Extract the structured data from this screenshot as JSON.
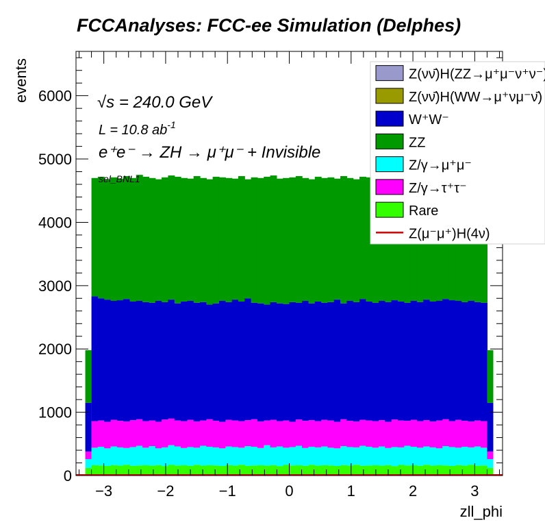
{
  "chart_data": {
    "type": "bar",
    "title": "FCCAnalyses: FCC-ee Simulation (Delphes)",
    "xlabel": "zll_phi",
    "ylabel": "events",
    "xlim": [
      -3.45,
      3.45
    ],
    "ylim": [
      0,
      6700
    ],
    "x_ticks": [
      -3,
      -2,
      -1,
      0,
      1,
      2,
      3
    ],
    "x_tick_labels": [
      "−3",
      "−2",
      "−1",
      "0",
      "1",
      "2",
      "3"
    ],
    "y_ticks": [
      0,
      1000,
      2000,
      3000,
      4000,
      5000,
      6000
    ],
    "y_tick_labels": [
      "0",
      "1000",
      "2000",
      "3000",
      "4000",
      "5000",
      "6000"
    ],
    "bin_range": [
      -3.2,
      3.2
    ],
    "annotations": {
      "energy": "√s = 240.0 GeV",
      "lumi": "L = 10.8 ab",
      "lumi_exp": "-1",
      "process": "e⁺e⁻ → ZH → μ⁺μ⁻ + Invisible",
      "selection": "sel_BNL1"
    },
    "legend": [
      {
        "label": "Z(νν̄)H(ZZ→μ⁺μ⁻ν⁺ν⁻)",
        "color": "#9999cc",
        "style": "fill"
      },
      {
        "label": "Z(νν̄)H(WW→μ⁺νμ⁻ν̄)",
        "color": "#999900",
        "style": "fill"
      },
      {
        "label": "W⁺W⁻",
        "color": "#0000cc",
        "style": "fill"
      },
      {
        "label": "ZZ",
        "color": "#009900",
        "style": "fill"
      },
      {
        "label": "Z/γ→μ⁺μ⁻",
        "color": "#00ffff",
        "style": "fill"
      },
      {
        "label": "Z/γ→τ⁺τ⁻",
        "color": "#ff00ff",
        "style": "fill"
      },
      {
        "label": "Rare",
        "color": "#33ff00",
        "style": "fill"
      },
      {
        "label": "Z(μ⁻μ⁺)H(4ν)",
        "color": "#cc0000",
        "style": "line"
      }
    ],
    "stack_order_bottom_to_top": [
      "Rare",
      "Z/γ→μ⁺μ⁻",
      "Z/γ→τ⁺τ⁻",
      "W⁺W⁻",
      "ZZ"
    ],
    "edge_bins": {
      "x": [
        -3.2,
        3.2
      ],
      "cumulative_totals": {
        "Rare": 120,
        "Z/γ→μ⁺μ⁻": 260,
        "Z/γ→τ⁺τ⁻": 380,
        "W⁺W⁻": 1150,
        "ZZ": 1980
      }
    },
    "central_cumulative_totals": {
      "Rare": [
        163,
        160,
        152,
        165,
        158,
        170,
        155,
        160,
        162,
        158,
        165,
        150,
        168,
        160,
        162,
        155,
        170,
        158,
        163,
        160,
        152,
        165,
        158,
        170,
        155,
        160,
        162,
        158,
        165,
        150,
        168,
        160,
        162,
        155,
        170,
        158,
        163,
        160,
        152,
        165,
        158,
        170,
        155,
        160,
        162,
        158,
        165,
        150,
        168,
        160,
        162,
        155,
        170,
        158,
        163,
        160,
        152,
        165,
        158,
        170,
        155,
        160
      ],
      "Z/γ→μ⁺μ⁻": [
        440,
        455,
        430,
        460,
        445,
        435,
        450,
        470,
        440,
        465,
        430,
        445,
        480,
        460,
        435,
        450,
        440,
        470,
        455,
        445,
        430,
        460,
        450,
        440,
        465,
        455,
        435,
        480,
        445,
        460,
        440,
        450,
        470,
        435,
        455,
        445,
        460,
        440,
        430,
        465,
        450,
        445,
        470,
        455,
        440,
        460,
        435,
        450,
        445,
        470,
        455,
        440,
        460,
        445,
        430,
        465,
        450,
        440,
        455,
        445,
        460,
        440
      ],
      "Z/γ→τ⁺τ⁻": [
        860,
        870,
        850,
        880,
        865,
        855,
        875,
        890,
        860,
        870,
        850,
        885,
        900,
        870,
        860,
        880,
        855,
        870,
        890,
        865,
        850,
        880,
        870,
        860,
        875,
        890,
        855,
        870,
        880,
        860,
        870,
        850,
        885,
        865,
        875,
        860,
        880,
        870,
        850,
        890,
        865,
        855,
        880,
        870,
        860,
        875,
        850,
        885,
        870,
        865,
        880,
        860,
        875,
        855,
        870,
        890,
        860,
        880,
        865,
        855,
        870,
        860
      ],
      "W⁺W⁻": [
        2830,
        2800,
        2780,
        2760,
        2770,
        2790,
        2750,
        2760,
        2740,
        2730,
        2760,
        2740,
        2780,
        2720,
        2750,
        2760,
        2730,
        2740,
        2700,
        2720,
        2760,
        2740,
        2780,
        2750,
        2800,
        2730,
        2720,
        2700,
        2740,
        2720,
        2710,
        2740,
        2730,
        2760,
        2720,
        2750,
        2730,
        2740,
        2780,
        2720,
        2760,
        2740,
        2790,
        2750,
        2730,
        2760,
        2740,
        2770,
        2750,
        2730,
        2760,
        2740,
        2780,
        2750,
        2760,
        2790,
        2770,
        2760,
        2740,
        2760,
        2740,
        2730
      ],
      "ZZ": [
        4700,
        4720,
        4680,
        4710,
        4690,
        4730,
        4700,
        4750,
        4720,
        4700,
        4680,
        4710,
        4740,
        4720,
        4700,
        4690,
        4730,
        4700,
        4680,
        4720,
        4710,
        4700,
        4690,
        4730,
        4680,
        4710,
        4700,
        4720,
        4740,
        4690,
        4700,
        4710,
        4730,
        4700,
        4680,
        4720,
        4700,
        4710,
        4690,
        4730,
        4700,
        4680,
        4720,
        4710,
        4740,
        4700,
        4690,
        4720,
        4700,
        4680,
        4710,
        4700,
        4730,
        4690,
        4720,
        4700,
        4710,
        4690,
        4730,
        4700,
        4720,
        4730
      ]
    }
  }
}
